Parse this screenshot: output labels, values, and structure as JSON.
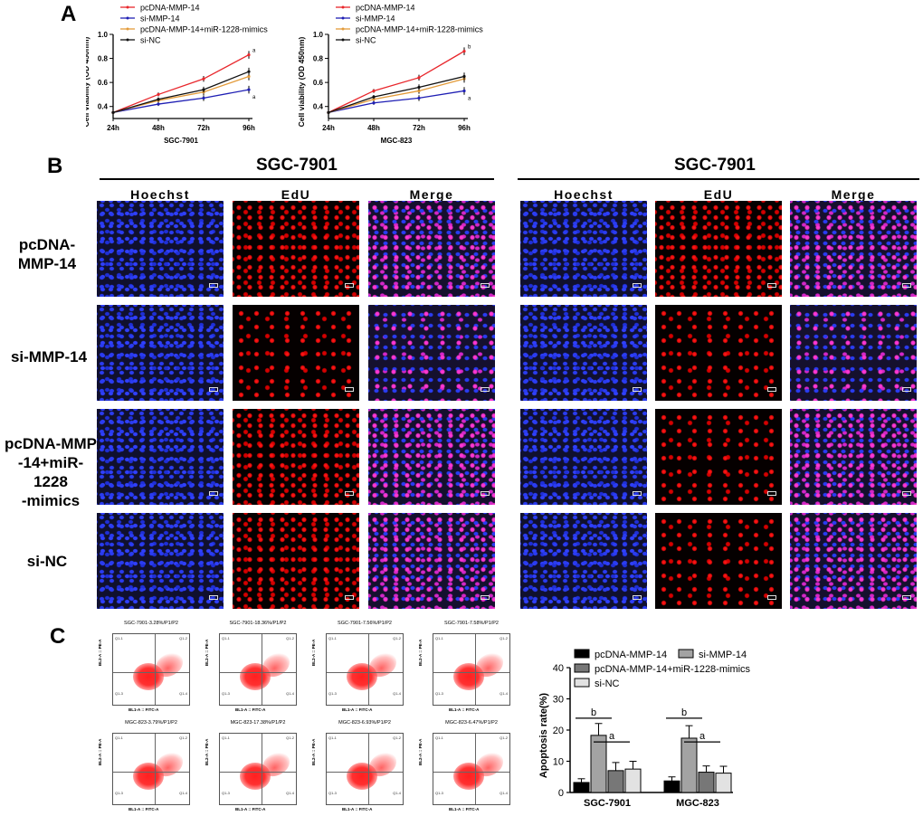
{
  "panels": {
    "a": "A",
    "b": "B",
    "c": "C"
  },
  "panel_b": {
    "left_title": "SGC-7901",
    "right_title": "SGC-7901",
    "columns": [
      "Hoechst",
      "EdU",
      "Merge"
    ],
    "rows": [
      "pcDNA-\nMMP-14",
      "si-MMP-14",
      "pcDNA-MMP\n-14+miR-1228\n-mimics",
      "si-NC"
    ]
  },
  "panel_c": {
    "flow_titles": [
      "SGC-7901-3.28%/P1/P2",
      "SGC-7901-18.36%/P1/P2",
      "SGC-7901-7.56%/P1/P2",
      "SGC-7901-7.58%/P1/P2",
      "MGC-823-3.79%/P1/P2",
      "MGC-823-17.38%/P1/P2",
      "MGC-823-6.93%/P1/P2",
      "MGC-823-6.47%/P1/P2"
    ],
    "flow_xlabel": "BL1-A :: FITC-A",
    "flow_ylabel": "BL2-A :: PE-A",
    "quadrants": [
      "Q1-1",
      "Q1-2",
      "Q1-3",
      "Q1-4"
    ]
  },
  "chart_data": [
    {
      "type": "line",
      "title": "",
      "xlabel": "SGC-7901",
      "ylabel": "Cell viability (OD 450nm)",
      "categories": [
        "24h",
        "48h",
        "72h",
        "96h"
      ],
      "ylim": [
        0.3,
        1.0
      ],
      "yticks": [
        "0.4",
        "0.6",
        "0.8",
        "1.0"
      ],
      "series": [
        {
          "name": "pcDNA-MMP-14",
          "color": "#e8262b",
          "values": [
            0.35,
            0.5,
            0.63,
            0.83
          ]
        },
        {
          "name": "si-MMP-14",
          "color": "#1f1fb4",
          "values": [
            0.35,
            0.42,
            0.47,
            0.54
          ]
        },
        {
          "name": "pcDNA-MMP-14+miR-1228-mimics",
          "color": "#e39b3a",
          "values": [
            0.35,
            0.45,
            0.52,
            0.65
          ]
        },
        {
          "name": "si-NC",
          "color": "#111111",
          "values": [
            0.35,
            0.46,
            0.54,
            0.69
          ]
        }
      ],
      "annotations": [
        "a",
        "a"
      ]
    },
    {
      "type": "line",
      "title": "",
      "xlabel": "MGC-823",
      "ylabel": "Cell viability (OD 450nm)",
      "categories": [
        "24h",
        "48h",
        "72h",
        "96h"
      ],
      "ylim": [
        0.3,
        1.0
      ],
      "yticks": [
        "0.4",
        "0.6",
        "0.8",
        "1.0"
      ],
      "series": [
        {
          "name": "pcDNA-MMP-14",
          "color": "#e8262b",
          "values": [
            0.35,
            0.53,
            0.64,
            0.86
          ]
        },
        {
          "name": "si-MMP-14",
          "color": "#1f1fb4",
          "values": [
            0.35,
            0.43,
            0.47,
            0.53
          ]
        },
        {
          "name": "pcDNA-MMP-14+miR-1228-mimics",
          "color": "#e39b3a",
          "values": [
            0.35,
            0.46,
            0.53,
            0.63
          ]
        },
        {
          "name": "si-NC",
          "color": "#111111",
          "values": [
            0.35,
            0.48,
            0.56,
            0.65
          ]
        }
      ],
      "annotations": [
        "b",
        "a"
      ]
    },
    {
      "type": "bar",
      "title": "",
      "xlabel": "",
      "ylabel": "Apoptosis rate(%)",
      "categories": [
        "SGC-7901",
        "MGC-823"
      ],
      "ylim": [
        0,
        40
      ],
      "yticks": [
        "0",
        "10",
        "20",
        "30",
        "40"
      ],
      "series": [
        {
          "name": "pcDNA-MMP-14",
          "color": "#000000",
          "values": [
            3.2,
            3.7
          ],
          "errors": [
            1.2,
            1.3
          ]
        },
        {
          "name": "si-MMP-14",
          "color": "#a3a3a3",
          "values": [
            18.3,
            17.4
          ],
          "errors": [
            3.8,
            4.0
          ]
        },
        {
          "name": "pcDNA-MMP-14+miR-1228-mimics",
          "color": "#777777",
          "values": [
            7.0,
            6.5
          ],
          "errors": [
            2.6,
            2.0
          ]
        },
        {
          "name": "si-NC",
          "color": "#e2e2e2",
          "values": [
            7.5,
            6.2
          ],
          "errors": [
            2.5,
            2.2
          ]
        }
      ],
      "annotations": [
        "b",
        "a",
        "b",
        "a"
      ]
    }
  ]
}
